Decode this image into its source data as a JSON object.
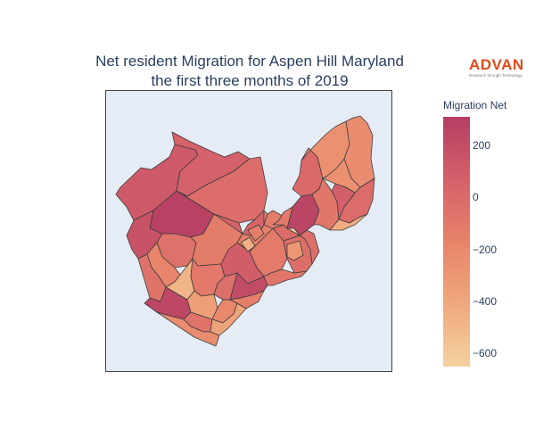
{
  "title_line1": "Net resident Migration for Aspen Hill Maryland",
  "title_line2": "the first three months of 2019",
  "logo": {
    "word": "ADVAN",
    "tagline": "Research through Technology"
  },
  "colorbar": {
    "title": "Migration Net",
    "min": -650,
    "max": 310,
    "ticks": [
      {
        "value": 200,
        "label": "200"
      },
      {
        "value": 0,
        "label": "0"
      },
      {
        "value": -200,
        "label": "−200"
      },
      {
        "value": -400,
        "label": "−400"
      },
      {
        "value": -600,
        "label": "−600"
      }
    ],
    "colors": [
      "#f5d1a0",
      "#f0a87d",
      "#e8836a",
      "#d4606a",
      "#b53e63"
    ]
  },
  "map": {
    "background": "#e5ecf6",
    "region_values": [
      120,
      60,
      -20,
      280,
      160,
      -50,
      -180,
      -480,
      -60,
      -120,
      40,
      250,
      -100,
      90,
      210,
      -40,
      -60,
      -350,
      -200,
      -140,
      -380,
      -230,
      -140,
      -110,
      -80,
      -30,
      -10,
      -120,
      -30,
      -650,
      -300,
      -450,
      -140,
      260,
      0,
      -90,
      -260,
      -230,
      -260,
      80,
      -10,
      -110,
      -440
    ]
  }
}
